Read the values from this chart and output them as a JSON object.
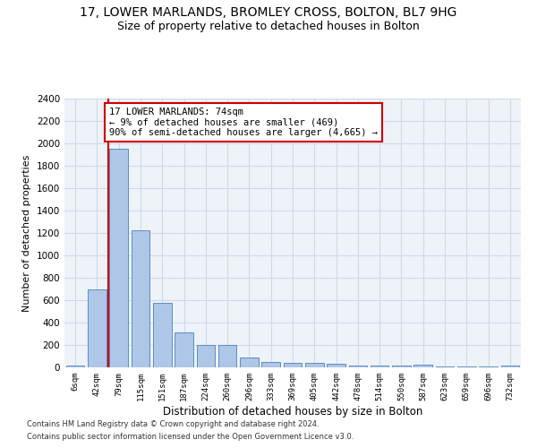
{
  "title1": "17, LOWER MARLANDS, BROMLEY CROSS, BOLTON, BL7 9HG",
  "title2": "Size of property relative to detached houses in Bolton",
  "xlabel": "Distribution of detached houses by size in Bolton",
  "ylabel": "Number of detached properties",
  "bar_labels": [
    "6sqm",
    "42sqm",
    "79sqm",
    "115sqm",
    "151sqm",
    "187sqm",
    "224sqm",
    "260sqm",
    "296sqm",
    "333sqm",
    "369sqm",
    "405sqm",
    "442sqm",
    "478sqm",
    "514sqm",
    "550sqm",
    "587sqm",
    "623sqm",
    "659sqm",
    "696sqm",
    "732sqm"
  ],
  "bar_values": [
    18,
    700,
    1950,
    1225,
    575,
    310,
    200,
    200,
    85,
    50,
    40,
    40,
    35,
    18,
    18,
    15,
    25,
    10,
    8,
    8,
    20
  ],
  "bar_color": "#aec6e8",
  "bar_edge_color": "#5a8fc0",
  "vline_x_pos": 1.5,
  "vline_color": "#cc0000",
  "annotation_text": "17 LOWER MARLANDS: 74sqm\n← 9% of detached houses are smaller (469)\n90% of semi-detached houses are larger (4,665) →",
  "annotation_box_color": "#ffffff",
  "annotation_box_edge": "#cc0000",
  "ylim": [
    0,
    2400
  ],
  "yticks": [
    0,
    200,
    400,
    600,
    800,
    1000,
    1200,
    1400,
    1600,
    1800,
    2000,
    2200,
    2400
  ],
  "footer1": "Contains HM Land Registry data © Crown copyright and database right 2024.",
  "footer2": "Contains public sector information licensed under the Open Government Licence v3.0.",
  "title1_fontsize": 10,
  "title2_fontsize": 9,
  "grid_color": "#d0d8e8",
  "background_color": "#eef2f9"
}
